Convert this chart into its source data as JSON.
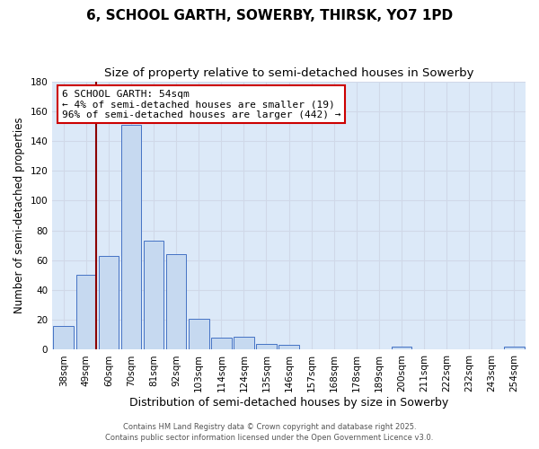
{
  "title": "6, SCHOOL GARTH, SOWERBY, THIRSK, YO7 1PD",
  "subtitle": "Size of property relative to semi-detached houses in Sowerby",
  "xlabel": "Distribution of semi-detached houses by size in Sowerby",
  "ylabel": "Number of semi-detached properties",
  "bar_labels": [
    "38sqm",
    "49sqm",
    "60sqm",
    "70sqm",
    "81sqm",
    "92sqm",
    "103sqm",
    "114sqm",
    "124sqm",
    "135sqm",
    "146sqm",
    "157sqm",
    "168sqm",
    "178sqm",
    "189sqm",
    "200sqm",
    "211sqm",
    "222sqm",
    "232sqm",
    "243sqm",
    "254sqm"
  ],
  "bar_values": [
    16,
    50,
    63,
    151,
    73,
    64,
    21,
    8,
    9,
    4,
    3,
    0,
    0,
    0,
    0,
    2,
    0,
    0,
    0,
    0,
    2
  ],
  "bar_color": "#c6d9f0",
  "bar_edge_color": "#4472c4",
  "ylim": [
    0,
    180
  ],
  "yticks": [
    0,
    20,
    40,
    60,
    80,
    100,
    120,
    140,
    160,
    180
  ],
  "grid_color": "#d0d8e8",
  "background_color": "#dce9f8",
  "property_line_label": "6 SCHOOL GARTH: 54sqm",
  "annotation_line1": "← 4% of semi-detached houses are smaller (19)",
  "annotation_line2": "96% of semi-detached houses are larger (442) →",
  "vline_color": "#8b0000",
  "vline_bin_index": 1.45,
  "footer1": "Contains HM Land Registry data © Crown copyright and database right 2025.",
  "footer2": "Contains public sector information licensed under the Open Government Licence v3.0.",
  "title_fontsize": 11,
  "subtitle_fontsize": 9.5,
  "xlabel_fontsize": 9,
  "ylabel_fontsize": 8.5,
  "tick_fontsize": 7.5,
  "footer_fontsize": 6,
  "annotation_fontsize": 8
}
